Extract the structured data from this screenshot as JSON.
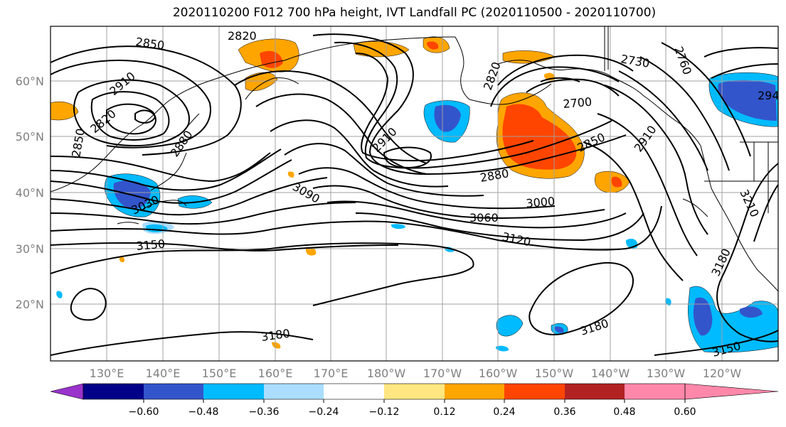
{
  "title": "2020110200 F012 700 hPa height, IVT Landfall PC (2020110500 - 2020110700)",
  "lat_labels": [
    "60°N",
    "50°N",
    "40°N",
    "30°N",
    "20°N"
  ],
  "lon_labels": [
    "130°E",
    "140°E",
    "150°E",
    "160°E",
    "170°E",
    "180°W",
    "170°W",
    "160°W",
    "150°W",
    "140°W",
    "130°W",
    "120°W"
  ],
  "colorbar": {
    "colors": [
      "#9933cc",
      "#000088",
      "#3355cc",
      "#00bbff",
      "#aaddff",
      "#ffffff",
      "#ffe680",
      "#ffa500",
      "#ff4500",
      "#b22222",
      "#ff88aa"
    ],
    "tick_labels": [
      "−0.60",
      "−0.48",
      "−0.36",
      "−0.24",
      "−0.12",
      "0.12",
      "0.24",
      "0.36",
      "0.48",
      "0.60"
    ]
  },
  "contour_labels": [
    "2850",
    "2820",
    "2910",
    "2820",
    "2850",
    "2880",
    "3030",
    "3090",
    "3060",
    "3000",
    "3120",
    "3150",
    "3180",
    "3180",
    "2910",
    "2880",
    "2820",
    "2730",
    "2760",
    "2700",
    "2850",
    "2910",
    "3210",
    "3180",
    "3150",
    "294"
  ],
  "palette": {
    "contour": "#000000",
    "grid": "#a0a0a0",
    "land": "#000000",
    "axis_text": "#808080"
  }
}
